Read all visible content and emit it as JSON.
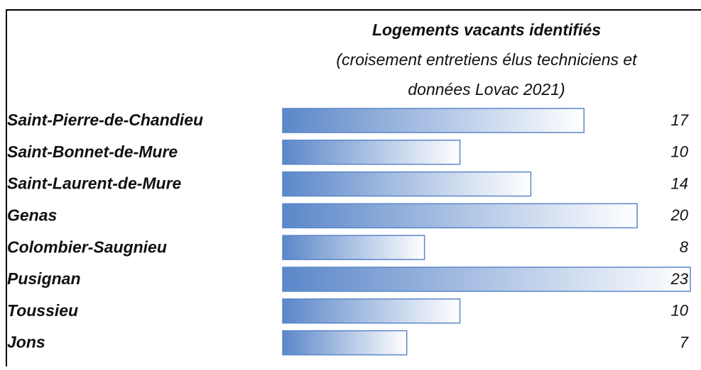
{
  "chart_data": {
    "type": "bar",
    "title": "Logements vacants identifiés",
    "subtitle": [
      "(croisement entretiens élus techniciens et",
      "données Lovac 2021)"
    ],
    "categories": [
      "Saint-Pierre-de-Chandieu",
      "Saint-Bonnet-de-Mure",
      "Saint-Laurent-de-Mure",
      "Genas",
      "Colombier-Saugnieu",
      "Pusignan",
      "Toussieu",
      "Jons"
    ],
    "values": [
      17,
      10,
      14,
      20,
      8,
      23,
      10,
      7
    ],
    "color": "#5b87c9"
  }
}
